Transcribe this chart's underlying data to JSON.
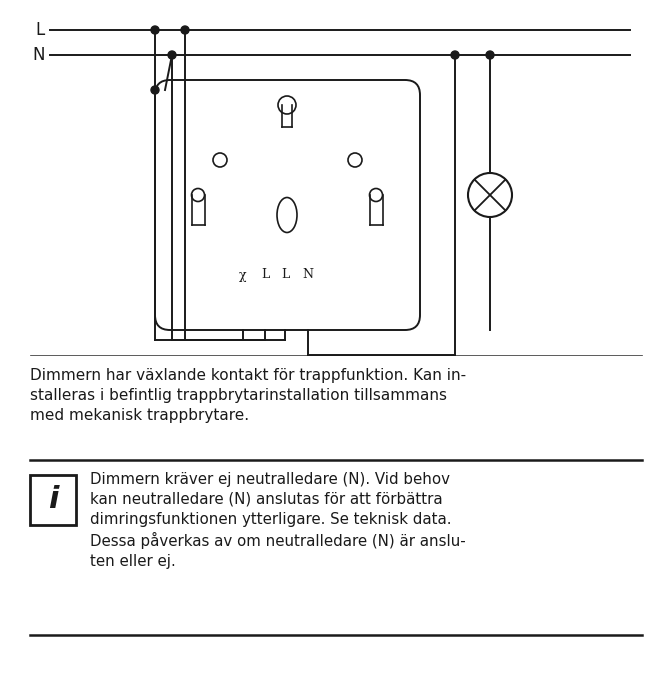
{
  "bg_color": "#ffffff",
  "line_color": "#1a1a1a",
  "text_color": "#1a1a1a",
  "fig_width": 6.72,
  "fig_height": 7.0,
  "desc_text": "Dimmern har växlande kontakt för trappfunktion. Kan in-\nstalleras i befintlig trappbrytarinstallation tillsammans\nmed mekanisk trappbrytare.",
  "info_text": "Dimmern kräver ej neutralledare (N). Vid behov\nkan neutralledare (N) anslutas för att förbättra\ndimringsfunktionen ytterligare. Se teknisk data.\nDessa påverkas av om neutralledare (N) är anslu-\nten eller ej.",
  "terminal_labels": [
    "χ",
    "L",
    "L",
    "N"
  ]
}
